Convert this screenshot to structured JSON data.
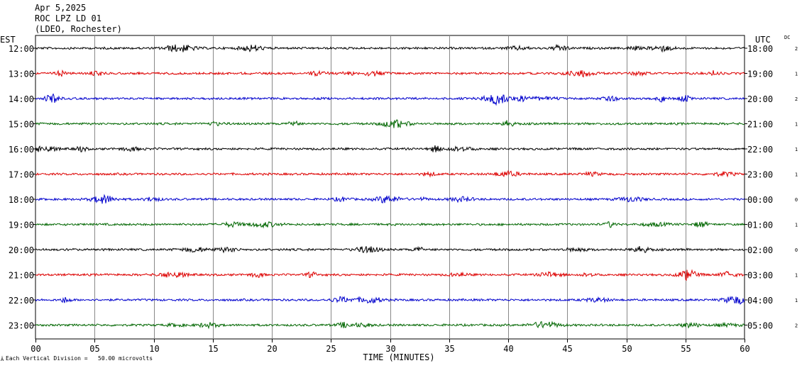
{
  "header": {
    "date": "Apr 5,2025",
    "station": "ROC LPZ LD 01",
    "network": "(LDEO, Rochester)"
  },
  "left_timezone": "EST",
  "right_timezone": "UTC",
  "dc_label": "DC",
  "footnote": {
    "icon": "Ä",
    "text": "Each Vertical Division =   50.00 microvolts"
  },
  "colors": {
    "trace_cycle": [
      "#000000",
      "#dd0000",
      "#0000cc",
      "#006600"
    ],
    "grid": "#888888",
    "background": "#ffffff"
  },
  "chart_data": {
    "type": "line",
    "xlabel": "TIME (MINUTES)",
    "xlim": [
      0,
      60
    ],
    "x_ticks": [
      0,
      5,
      10,
      15,
      20,
      25,
      30,
      35,
      40,
      45,
      50,
      55,
      60
    ],
    "x_tick_labels": [
      "00",
      "05",
      "10",
      "15",
      "20",
      "25",
      "30",
      "35",
      "40",
      "45",
      "50",
      "55",
      "60"
    ],
    "rows": [
      {
        "local": "12:00",
        "utc": "18:00",
        "dc": "2"
      },
      {
        "local": "13:00",
        "utc": "19:00",
        "dc": "1"
      },
      {
        "local": "14:00",
        "utc": "20:00",
        "dc": "2"
      },
      {
        "local": "15:00",
        "utc": "21:00",
        "dc": "1"
      },
      {
        "local": "16:00",
        "utc": "22:00",
        "dc": "1"
      },
      {
        "local": "17:00",
        "utc": "23:00",
        "dc": "1"
      },
      {
        "local": "18:00",
        "utc": "00:00",
        "dc": "0"
      },
      {
        "local": "19:00",
        "utc": "01:00",
        "dc": "1"
      },
      {
        "local": "20:00",
        "utc": "02:00",
        "dc": "0"
      },
      {
        "local": "21:00",
        "utc": "03:00",
        "dc": "1"
      },
      {
        "local": "22:00",
        "utc": "04:00",
        "dc": "1"
      },
      {
        "local": "23:00",
        "utc": "05:00",
        "dc": "2"
      }
    ]
  }
}
